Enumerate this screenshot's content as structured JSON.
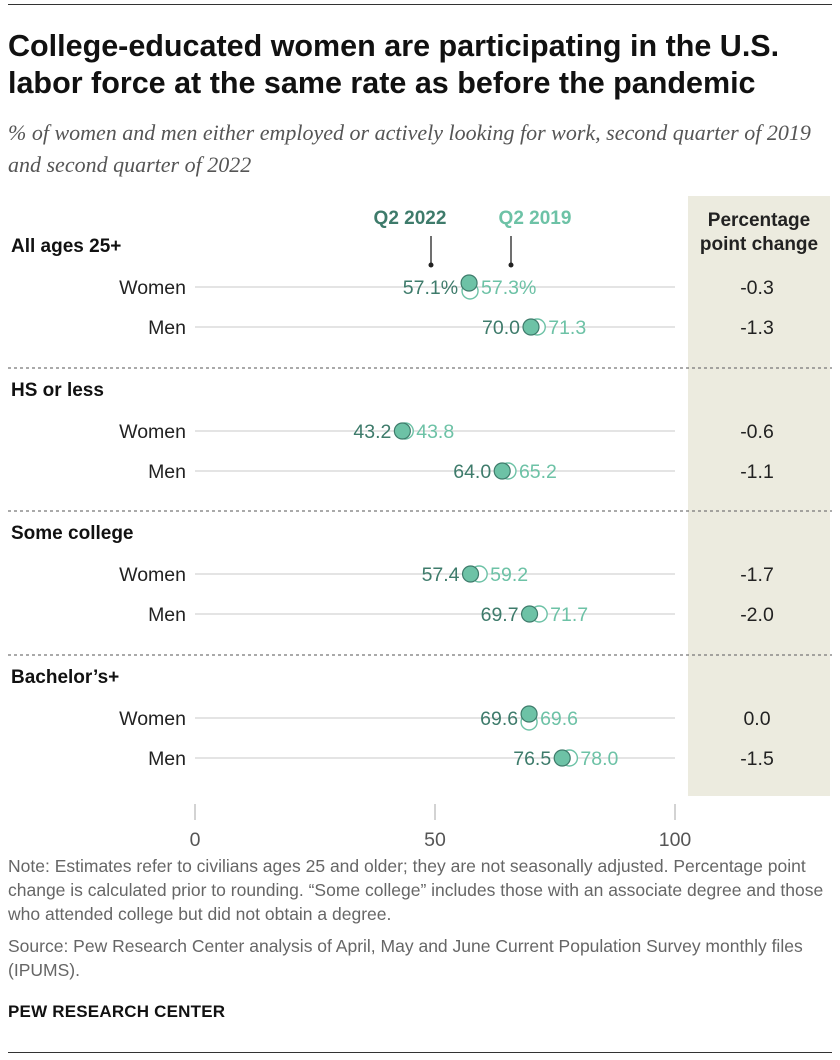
{
  "title": "College-educated women are participating in the U.S. labor force at the same rate as before the pandemic",
  "subtitle": "% of women and men either employed or actively looking for work, second quarter of 2019 and second quarter of 2022",
  "note": "Note: Estimates refer to civilians ages 25 and older; they are not seasonally adjusted. Percentage point change is calculated prior to rounding. “Some college” includes those with an associate degree and those who attended college but did not obtain a degree.",
  "source": "Source: Pew Research Center analysis of April, May and June Current Population Survey monthly files (IPUMS).",
  "brand": "PEW RESEARCH CENTER",
  "colors": {
    "q2_2022": "#3e7b6b",
    "q2_2019": "#6dc2a6",
    "change_panel": "#ecebdf"
  },
  "chart_data": {
    "type": "dot",
    "xlim": [
      0,
      100
    ],
    "ticks": [
      "0",
      "50",
      "100"
    ],
    "tick_values": [
      0,
      50,
      100
    ],
    "legend": {
      "q2_2022": "Q2 2022",
      "q2_2019": "Q2 2019"
    },
    "change_header": [
      "Percentage",
      "point change"
    ],
    "groups": [
      {
        "name": "All ages 25+",
        "rows": [
          {
            "label": "Women",
            "q2_2022": 57.1,
            "q2_2019": 57.3,
            "label_2022": "57.1%",
            "label_2019": "57.3%",
            "change": "-0.3"
          },
          {
            "label": "Men",
            "q2_2022": 70.0,
            "q2_2019": 71.3,
            "label_2022": "70.0",
            "label_2019": "71.3",
            "change": "-1.3"
          }
        ]
      },
      {
        "name": "HS or less",
        "rows": [
          {
            "label": "Women",
            "q2_2022": 43.2,
            "q2_2019": 43.8,
            "label_2022": "43.2",
            "label_2019": "43.8",
            "change": "-0.6"
          },
          {
            "label": "Men",
            "q2_2022": 64.0,
            "q2_2019": 65.2,
            "label_2022": "64.0",
            "label_2019": "65.2",
            "change": "-1.1"
          }
        ]
      },
      {
        "name": "Some college",
        "rows": [
          {
            "label": "Women",
            "q2_2022": 57.4,
            "q2_2019": 59.2,
            "label_2022": "57.4",
            "label_2019": "59.2",
            "change": "-1.7"
          },
          {
            "label": "Men",
            "q2_2022": 69.7,
            "q2_2019": 71.7,
            "label_2022": "69.7",
            "label_2019": "71.7",
            "change": "-2.0"
          }
        ]
      },
      {
        "name": "Bachelor’s+",
        "rows": [
          {
            "label": "Women",
            "q2_2022": 69.6,
            "q2_2019": 69.6,
            "label_2022": "69.6",
            "label_2019": "69.6",
            "change": "0.0"
          },
          {
            "label": "Men",
            "q2_2022": 76.5,
            "q2_2019": 78.0,
            "label_2022": "76.5",
            "label_2019": "78.0",
            "change": "-1.5"
          }
        ]
      }
    ]
  }
}
